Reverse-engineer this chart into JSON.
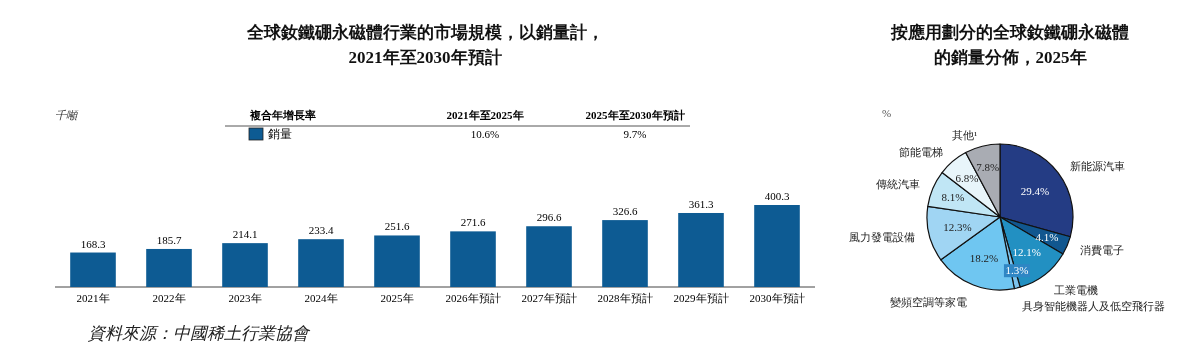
{
  "chart_data": [
    {
      "type": "bar",
      "title": "全球釹鐵硼永磁體行業的市場規模，以銷量計，2021年至2030年預計",
      "ylabel": "千噸",
      "categories": [
        "2021年",
        "2022年",
        "2023年",
        "2024年",
        "2025年",
        "2026年預計",
        "2027年預計",
        "2028年預計",
        "2029年預計",
        "2030年預計"
      ],
      "series": [
        {
          "name": "銷量",
          "color": "#0d5b93",
          "values": [
            168.3,
            185.7,
            214.1,
            233.4,
            251.6,
            271.6,
            296.6,
            326.6,
            361.3,
            400.3
          ]
        }
      ],
      "data_labels": true,
      "legend": "top",
      "annotations": [
        "複合年增長率",
        "2021年至2025年",
        "2025年至2030年預計",
        "10.6%",
        "9.7%",
        "資料來源：中國稀土行業協會"
      ]
    },
    {
      "type": "pie",
      "title": "按應用劃分的全球釹鐵硼永磁體的銷量分佈，2025年",
      "categories": [
        "新能源汽車",
        "消費電子",
        "工業電機",
        "具身智能機器人及低空飛行器",
        "變頻空調等家電",
        "風力發電設備",
        "傳統汽車",
        "節能電梯",
        "其他¹"
      ],
      "values": [
        29.4,
        4.1,
        12.1,
        1.3,
        18.2,
        12.3,
        8.1,
        6.8,
        7.8
      ],
      "colors": [
        "#243c84",
        "#11578f",
        "#2290c2",
        "#7cc3ec",
        "#6fc6f1",
        "#a0d5f3",
        "#c0e6f5",
        "#e8f5fa",
        "#a9acb3"
      ],
      "value_labels": [
        "29.4%",
        "4.1%",
        "12.1%",
        "1.3%",
        "18.2%",
        "12.3%",
        "8.1%",
        "6.8%",
        "7.8%"
      ],
      "annotations": [
        "%"
      ]
    }
  ]
}
